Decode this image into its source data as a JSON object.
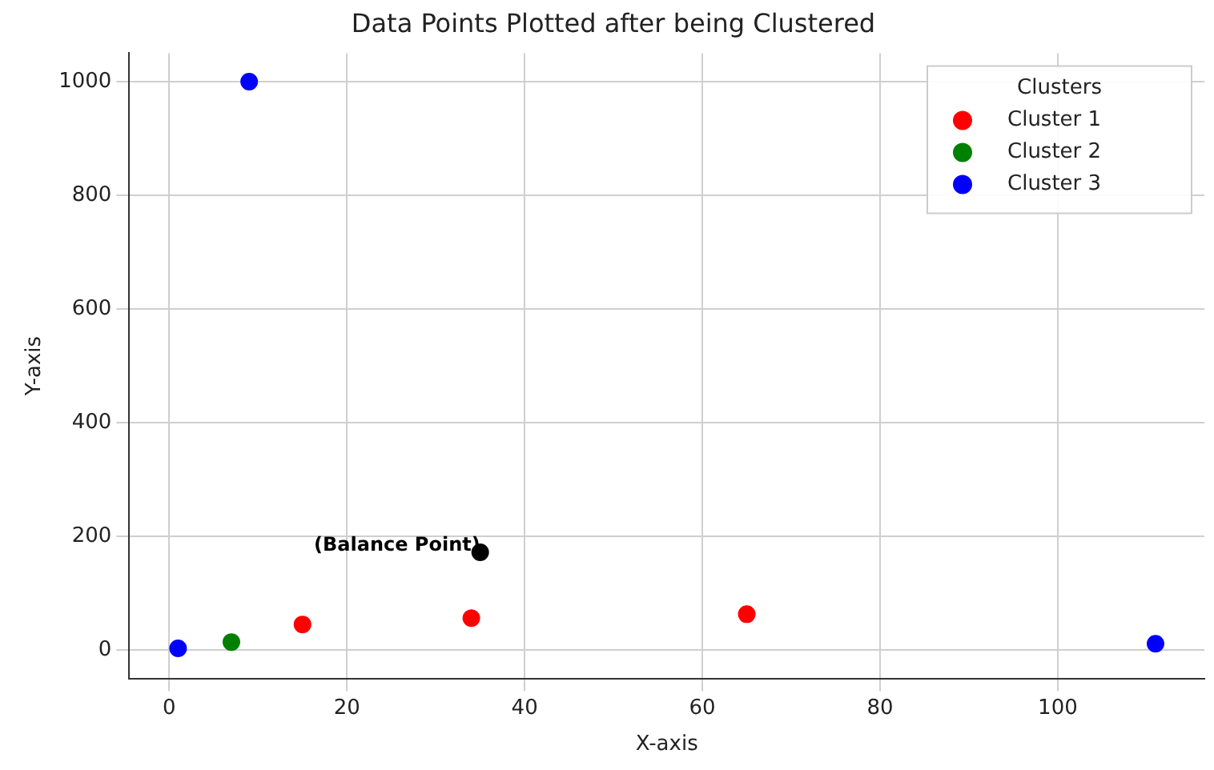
{
  "chart_data": {
    "type": "scatter",
    "title": "Data Points Plotted after being Clustered",
    "xlabel": "X-axis",
    "ylabel": "Y-axis",
    "legend_title": "Clusters",
    "series": [
      {
        "name": "Cluster 1",
        "color": "#ff0000",
        "x": [
          15,
          34,
          65
        ],
        "values": [
          45,
          56,
          63
        ]
      },
      {
        "name": "Cluster 2",
        "color": "#008000",
        "x": [
          7
        ],
        "values": [
          14
        ]
      },
      {
        "name": "Cluster 3",
        "color": "#0000ff",
        "x": [
          9,
          1,
          111
        ],
        "values": [
          1000,
          3,
          11
        ]
      },
      {
        "color": "#000000",
        "x": [
          35
        ],
        "values": [
          172
        ]
      }
    ],
    "annotations": [
      {
        "text": "(Balance Point)",
        "x": 35,
        "y": 172
      }
    ],
    "xlim": [
      -4.5,
      116.5
    ],
    "xticks": [
      0,
      20,
      40,
      60,
      80,
      100
    ],
    "ylim": [
      -50,
      1050
    ],
    "yticks": [
      0,
      200,
      400,
      600,
      800,
      1000
    ],
    "grid": true,
    "legend": "top right",
    "marker": "circle"
  }
}
